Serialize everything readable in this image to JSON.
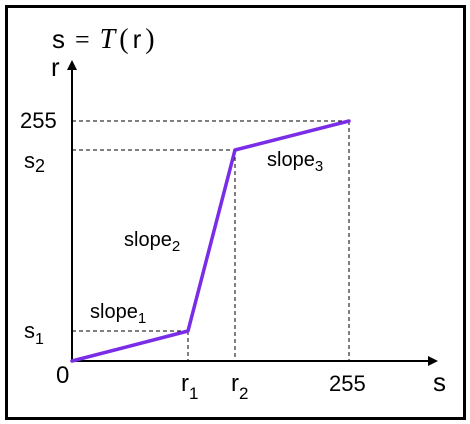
{
  "title": {
    "lhs": "s",
    "equals": "=",
    "func": "T",
    "open": "(",
    "arg": "r",
    "close": ")"
  },
  "axes": {
    "vertical_label": "r",
    "horizontal_label": "s",
    "origin_label": "0"
  },
  "ticks": {
    "y": {
      "top": "255",
      "s2": {
        "base": "s",
        "sub": "2"
      },
      "s1": {
        "base": "s",
        "sub": "1"
      }
    },
    "x": {
      "r1": {
        "base": "r",
        "sub": "1"
      },
      "r2": {
        "base": "r",
        "sub": "2"
      },
      "max": "255"
    }
  },
  "segments": {
    "slope1": {
      "base": "slope",
      "sub": "1"
    },
    "slope2": {
      "base": "slope",
      "sub": "2"
    },
    "slope3": {
      "base": "slope",
      "sub": "3"
    }
  },
  "colors": {
    "curve": "#7a2de6",
    "axis": "#000000",
    "guide": "#000000"
  },
  "curve_points": [
    {
      "id": "origin",
      "r": 0,
      "s": 0
    },
    {
      "id": "r1_s1",
      "r": "r1",
      "s": "s1"
    },
    {
      "id": "r2_s2",
      "r": "r2",
      "s": "s2"
    },
    {
      "id": "end",
      "r": 255,
      "s": 255
    }
  ]
}
